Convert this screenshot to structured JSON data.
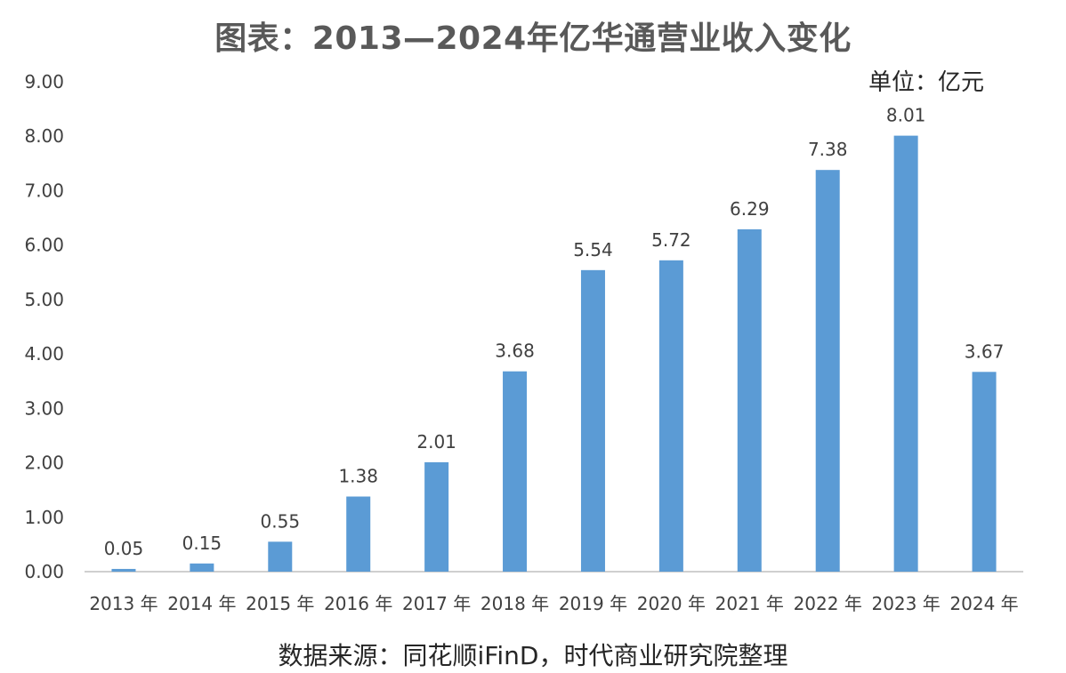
{
  "title": "图表：2013—2024年亿华通营业收入变化",
  "unit_label": "单位：亿元",
  "source_note": "数据来源：同花顺iFinD，时代商业研究院整理",
  "colors": {
    "bar": "#5B9BD5",
    "axis": "#BFBFBF",
    "text": "#404040"
  },
  "chart_data": {
    "type": "bar",
    "title": "图表：2013—2024年亿华通营业收入变化",
    "categories": [
      "2013 年",
      "2014 年",
      "2015 年",
      "2016 年",
      "2017 年",
      "2018 年",
      "2019 年",
      "2020 年",
      "2021 年",
      "2022 年",
      "2023 年",
      "2024 年"
    ],
    "values": [
      0.05,
      0.15,
      0.55,
      1.38,
      2.01,
      3.68,
      5.54,
      5.72,
      6.29,
      7.38,
      8.01,
      3.67
    ],
    "data_labels": [
      "0.05",
      "0.15",
      "0.55",
      "1.38",
      "2.01",
      "3.68",
      "5.54",
      "5.72",
      "6.29",
      "7.38",
      "8.01",
      "3.67"
    ],
    "y_ticks": [
      "0.00",
      "1.00",
      "2.00",
      "3.00",
      "4.00",
      "5.00",
      "6.00",
      "7.00",
      "8.00",
      "9.00"
    ],
    "xlabel": "",
    "ylabel": "",
    "ylim": [
      0,
      9
    ],
    "grid": false,
    "legend": "none"
  }
}
